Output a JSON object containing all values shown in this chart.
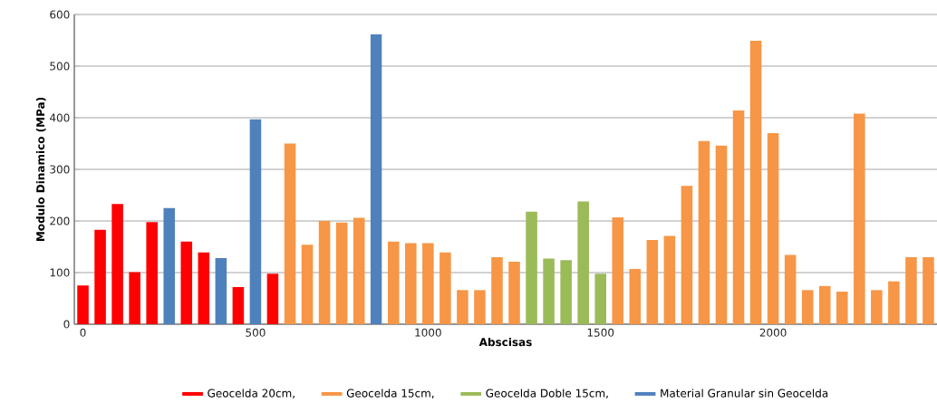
{
  "chart_data": {
    "type": "bar",
    "xlabel": "Abscisas",
    "ylabel": "Modulo Dinamico (MPa)",
    "x": [
      0,
      50,
      100,
      150,
      200,
      250,
      300,
      350,
      400,
      450,
      500,
      550,
      600,
      650,
      700,
      750,
      800,
      850,
      900,
      950,
      1000,
      1050,
      1100,
      1150,
      1200,
      1250,
      1300,
      1350,
      1400,
      1450,
      1500,
      1550,
      1600,
      1650,
      1700,
      1750,
      1800,
      1850,
      1900,
      1950,
      2000,
      2050,
      2100,
      2150,
      2200,
      2250,
      2300,
      2350,
      2400,
      2450
    ],
    "series": [
      {
        "name": "Geocelda 20cm,",
        "color": "#ff0000",
        "values": [
          75,
          183,
          233,
          101,
          198,
          null,
          160,
          139,
          null,
          72,
          null,
          98,
          null,
          null,
          null,
          null,
          null,
          null,
          null,
          null,
          null,
          null,
          null,
          null,
          null,
          null,
          null,
          null,
          null,
          null,
          null,
          null,
          null,
          null,
          null,
          null,
          null,
          null,
          null,
          null,
          null,
          null,
          null,
          null,
          null,
          null,
          null,
          null,
          null,
          null
        ]
      },
      {
        "name": "Geocelda 15cm,",
        "color": "#f79646",
        "values": [
          null,
          null,
          null,
          null,
          null,
          null,
          null,
          null,
          null,
          null,
          null,
          null,
          350,
          154,
          200,
          197,
          206,
          null,
          160,
          157,
          157,
          139,
          66,
          66,
          130,
          121,
          null,
          null,
          null,
          null,
          null,
          207,
          107,
          163,
          171,
          268,
          355,
          346,
          414,
          549,
          370,
          134,
          66,
          74,
          63,
          408,
          66,
          83,
          130,
          130
        ]
      },
      {
        "name": "Geocelda Doble 15cm,",
        "color": "#9bbb59",
        "values": [
          null,
          null,
          null,
          null,
          null,
          null,
          null,
          null,
          null,
          null,
          null,
          null,
          null,
          null,
          null,
          null,
          null,
          null,
          null,
          null,
          null,
          null,
          null,
          null,
          null,
          null,
          218,
          127,
          124,
          238,
          98,
          null,
          null,
          null,
          null,
          null,
          null,
          null,
          null,
          null,
          null,
          null,
          null,
          null,
          null,
          null,
          null,
          null,
          null,
          null
        ]
      },
      {
        "name": "Material Granular sin Geocelda",
        "color": "#4f81bd",
        "values": [
          null,
          null,
          null,
          null,
          null,
          225,
          null,
          null,
          128,
          null,
          397,
          null,
          null,
          null,
          null,
          null,
          null,
          562,
          null,
          null,
          null,
          null,
          null,
          null,
          null,
          null,
          null,
          null,
          null,
          null,
          null,
          null,
          null,
          null,
          null,
          null,
          null,
          null,
          null,
          null,
          null,
          null,
          null,
          null,
          null,
          null,
          null,
          null,
          null,
          null
        ]
      }
    ],
    "xlim": [
      -25,
      2475
    ],
    "xticks": [
      0,
      500,
      1000,
      1500,
      2000
    ],
    "ylim": [
      0,
      600
    ],
    "yticks": [
      0,
      100,
      200,
      300,
      400,
      500,
      600
    ],
    "grid": "y",
    "legend": "bottom"
  }
}
